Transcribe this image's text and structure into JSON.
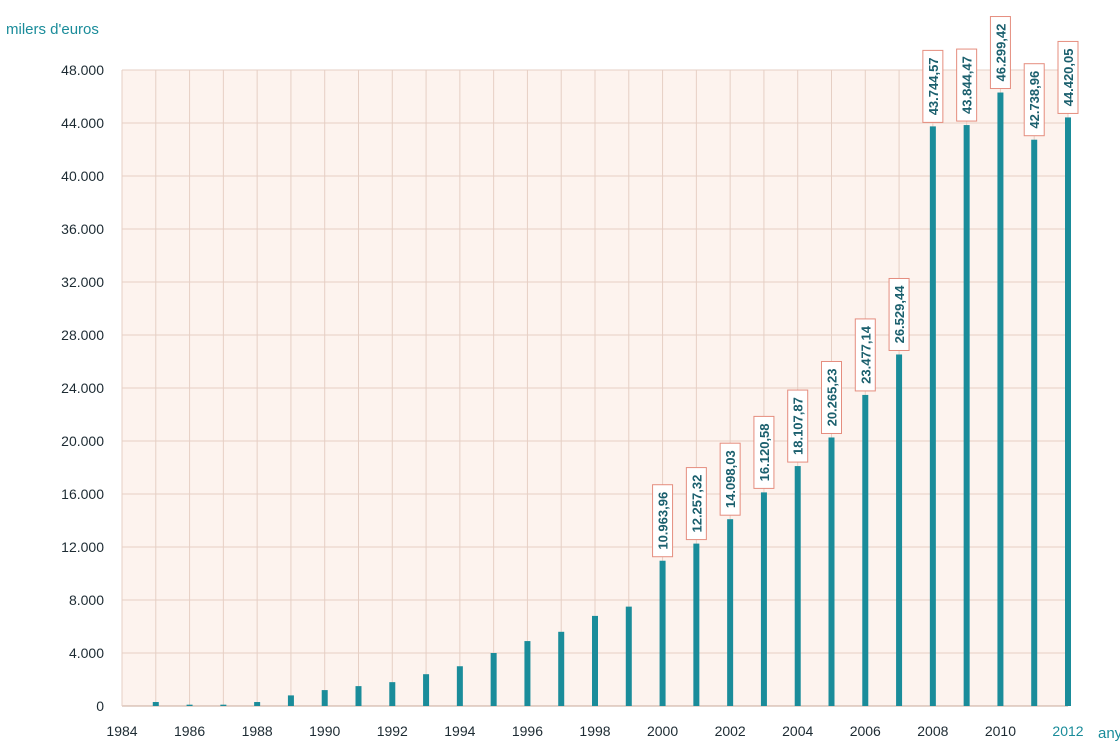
{
  "chart_data": {
    "type": "bar",
    "ylabel": "milers d'euros",
    "xlabel": "any",
    "ylim": [
      0,
      48000
    ],
    "y_ticks": [
      {
        "value": 0,
        "label": "0"
      },
      {
        "value": 4000,
        "label": "4.000"
      },
      {
        "value": 8000,
        "label": "8.000"
      },
      {
        "value": 12000,
        "label": "12.000"
      },
      {
        "value": 16000,
        "label": "16.000"
      },
      {
        "value": 20000,
        "label": "20.000"
      },
      {
        "value": 24000,
        "label": "24.000"
      },
      {
        "value": 28000,
        "label": "28.000"
      },
      {
        "value": 32000,
        "label": "32.000"
      },
      {
        "value": 36000,
        "label": "36.000"
      },
      {
        "value": 40000,
        "label": "40.000"
      },
      {
        "value": 44000,
        "label": "44.000"
      },
      {
        "value": 48000,
        "label": "48.000"
      }
    ],
    "x_ticks": [
      1984,
      1986,
      1988,
      1990,
      1992,
      1994,
      1996,
      1998,
      2000,
      2002,
      2004,
      2006,
      2008,
      2010,
      2012
    ],
    "xlim": [
      1984,
      2012
    ],
    "grid": true,
    "bars": [
      {
        "year": 1985,
        "value": 300
      },
      {
        "year": 1986,
        "value": 100
      },
      {
        "year": 1987,
        "value": 100
      },
      {
        "year": 1988,
        "value": 300
      },
      {
        "year": 1989,
        "value": 800
      },
      {
        "year": 1990,
        "value": 1200
      },
      {
        "year": 1991,
        "value": 1500
      },
      {
        "year": 1992,
        "value": 1800
      },
      {
        "year": 1993,
        "value": 2400
      },
      {
        "year": 1994,
        "value": 3000
      },
      {
        "year": 1995,
        "value": 4000
      },
      {
        "year": 1996,
        "value": 4900
      },
      {
        "year": 1997,
        "value": 5600
      },
      {
        "year": 1998,
        "value": 6800
      },
      {
        "year": 1999,
        "value": 7500
      },
      {
        "year": 2000,
        "value": 10963.96,
        "label": "10.963,96"
      },
      {
        "year": 2001,
        "value": 12257.32,
        "label": "12.257,32"
      },
      {
        "year": 2002,
        "value": 14098.03,
        "label": "14.098,03"
      },
      {
        "year": 2003,
        "value": 16120.58,
        "label": "16.120,58"
      },
      {
        "year": 2004,
        "value": 18107.87,
        "label": "18.107,87"
      },
      {
        "year": 2005,
        "value": 20265.23,
        "label": "20.265,23"
      },
      {
        "year": 2006,
        "value": 23477.14,
        "label": "23.477,14"
      },
      {
        "year": 2007,
        "value": 26529.44,
        "label": "26.529,44"
      },
      {
        "year": 2008,
        "value": 43744.57,
        "label": "43.744,57"
      },
      {
        "year": 2009,
        "value": 43844.47,
        "label": "43.844,47"
      },
      {
        "year": 2010,
        "value": 46299.42,
        "label": "46.299,42"
      },
      {
        "year": 2011,
        "value": 42738.96,
        "label": "42.738,96"
      },
      {
        "year": 2012,
        "value": 44420.05,
        "label": "44.420,05"
      }
    ],
    "accent_x_tick": 2012
  },
  "colors": {
    "bar": "#1a8c9a",
    "plot_background": "#fdf3ee",
    "grid": "#e6cfc4",
    "label_border": "#e58d7e",
    "label_text": "#1a5f6d",
    "accent": "#1a8c9a"
  }
}
